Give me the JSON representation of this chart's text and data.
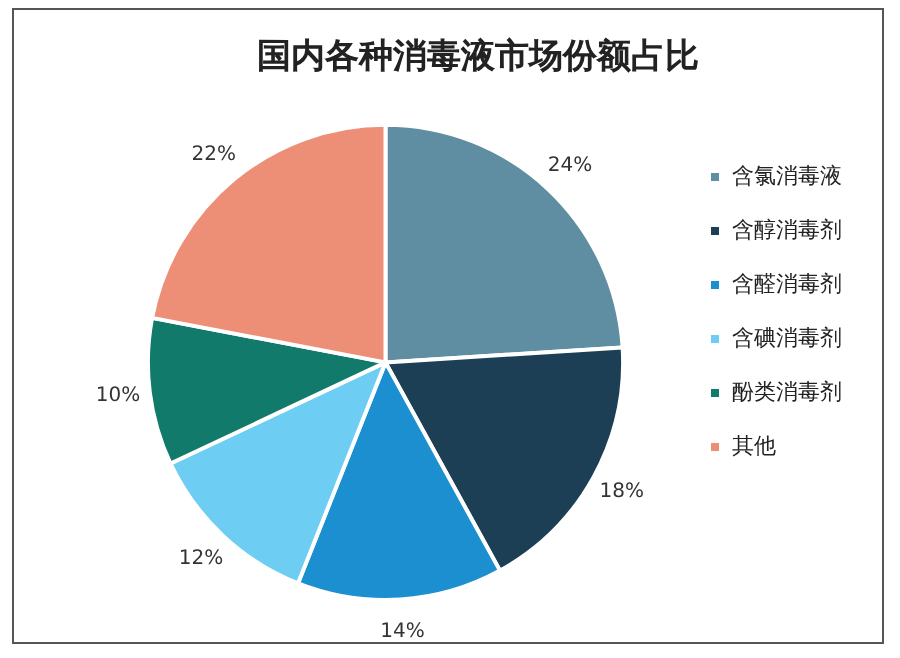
{
  "chart_data": {
    "type": "pie",
    "title": "国内各种消毒液市场份额占比",
    "categories": [
      "含氯消毒液",
      "含醇消毒剂",
      "含醛消毒剂",
      "含碘消毒剂",
      "酚类消毒剂",
      "其他"
    ],
    "values": [
      24,
      18,
      14,
      12,
      10,
      22
    ],
    "colors": [
      "#5f8ea3",
      "#1c3f55",
      "#1b8fd0",
      "#6ecdf2",
      "#117a6b",
      "#ec8f76"
    ],
    "value_labels": [
      "24%",
      "18%",
      "14%",
      "12%",
      "10%",
      "22%"
    ],
    "legend": "right"
  }
}
